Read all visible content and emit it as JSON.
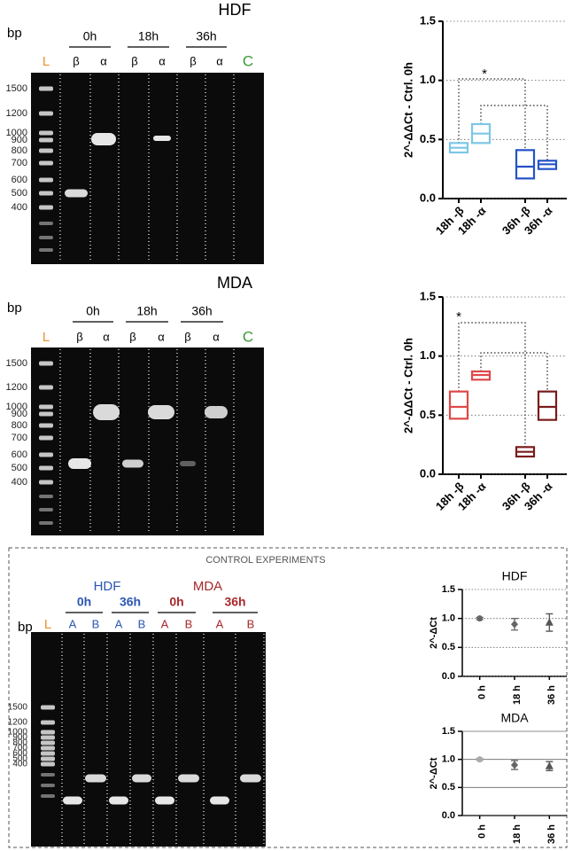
{
  "gels": [
    {
      "title": "HDF",
      "unit": "bp",
      "ladder": "L",
      "control": "C",
      "groups": [
        {
          "label": "0h",
          "lanes": [
            "β",
            "α"
          ]
        },
        {
          "label": "18h",
          "lanes": [
            "β",
            "α"
          ]
        },
        {
          "label": "36h",
          "lanes": [
            "β",
            "α"
          ]
        }
      ],
      "markers": [
        1500,
        1200,
        1000,
        900,
        800,
        700,
        600,
        500,
        400
      ]
    },
    {
      "title": "MDA",
      "unit": "bp",
      "ladder": "L",
      "control": "C",
      "groups": [
        {
          "label": "0h",
          "lanes": [
            "β",
            "α"
          ]
        },
        {
          "label": "18h",
          "lanes": [
            "β",
            "α"
          ]
        },
        {
          "label": "36h",
          "lanes": [
            "β",
            "α"
          ]
        }
      ],
      "markers": [
        1500,
        1200,
        1000,
        900,
        800,
        700,
        600,
        500,
        400
      ]
    },
    {
      "title": "CONTROL EXPERIMENTS",
      "unit": "bp",
      "ladder": "L",
      "cells": [
        {
          "label": "HDF",
          "color": "#2b56b3",
          "groups": [
            {
              "label": "0h",
              "lanes": [
                "A",
                "B"
              ]
            },
            {
              "label": "36h",
              "lanes": [
                "A",
                "B"
              ]
            }
          ]
        },
        {
          "label": "MDA",
          "color": "#a8282a",
          "groups": [
            {
              "label": "0h",
              "lanes": [
                "A",
                "B"
              ]
            },
            {
              "label": "36h",
              "lanes": [
                "A",
                "B"
              ]
            }
          ]
        }
      ],
      "markers": [
        1500,
        1200,
        1000,
        900,
        800,
        700,
        600,
        500,
        400
      ]
    }
  ],
  "chart_data": [
    {
      "type": "box",
      "y_label": "2^-ΔΔCt - Ctrl. 0h",
      "categories": [
        "18h -β",
        "18h -α",
        "36h -β",
        "36h -α"
      ],
      "q1": [
        0.39,
        0.47,
        0.17,
        0.25
      ],
      "median": [
        0.43,
        0.55,
        0.27,
        0.29
      ],
      "q3": [
        0.47,
        0.63,
        0.41,
        0.32
      ],
      "colors": [
        "#7cc6e6",
        "#7cc6e6",
        "#2452c8",
        "#2452c8"
      ],
      "ylim": [
        0,
        1.5
      ],
      "yticks": [
        {
          "value": 0,
          "label": "0.0"
        },
        0.5,
        {
          "value": 1,
          "label": "1.0"
        },
        1.5
      ],
      "grid": true,
      "annotations": [
        "*"
      ]
    },
    {
      "type": "box",
      "y_label": "2^-ΔΔCt - Ctrl. 0h",
      "categories": [
        "18h -β",
        "18h -α",
        "36h -β",
        "36h -α"
      ],
      "q1": [
        0.47,
        0.8,
        0.15,
        0.46
      ],
      "median": [
        0.57,
        0.84,
        0.19,
        0.57
      ],
      "q3": [
        0.7,
        0.87,
        0.23,
        0.7
      ],
      "colors": [
        "#e04848",
        "#e04848",
        "#7a1c1c",
        "#7a1c1c"
      ],
      "ylim": [
        0,
        1.5
      ],
      "yticks": [
        {
          "value": 0,
          "label": "0.0"
        },
        0.5,
        {
          "value": 1,
          "label": "1.0"
        },
        1.5
      ],
      "grid": true,
      "annotations": [
        "*"
      ]
    },
    {
      "type": "errorpoint",
      "title": "HDF",
      "y_label": "2^-ΔCt",
      "categories": [
        "0 h",
        "18 h",
        "36 h"
      ],
      "values": [
        1.0,
        0.9,
        0.93
      ],
      "errors": [
        0.02,
        0.1,
        0.15
      ],
      "markers": [
        "circle",
        "diamond",
        "triangle"
      ],
      "colors": [
        "#666666",
        "#666666",
        "#555555"
      ],
      "ylim": [
        0,
        1.5
      ],
      "yticks": [
        {
          "value": 0,
          "label": "0.0"
        },
        0.5,
        {
          "value": 1,
          "label": "1.0"
        },
        1.5
      ],
      "grid": true
    },
    {
      "type": "errorpoint",
      "title": "MDA",
      "y_label": "2^-ΔCt",
      "categories": [
        "0 h",
        "18 h",
        "36 h"
      ],
      "values": [
        1.0,
        0.9,
        0.88
      ],
      "errors": [
        0.02,
        0.08,
        0.08
      ],
      "markers": [
        "circle",
        "diamond",
        "triangle"
      ],
      "colors": [
        "#aaaaaa",
        "#666666",
        "#555555"
      ],
      "ylim": [
        0,
        1.5
      ],
      "yticks": [
        {
          "value": 0,
          "label": "0.0"
        },
        0.5,
        {
          "value": 1,
          "label": "1.0"
        },
        1.5
      ],
      "grid": true
    }
  ]
}
